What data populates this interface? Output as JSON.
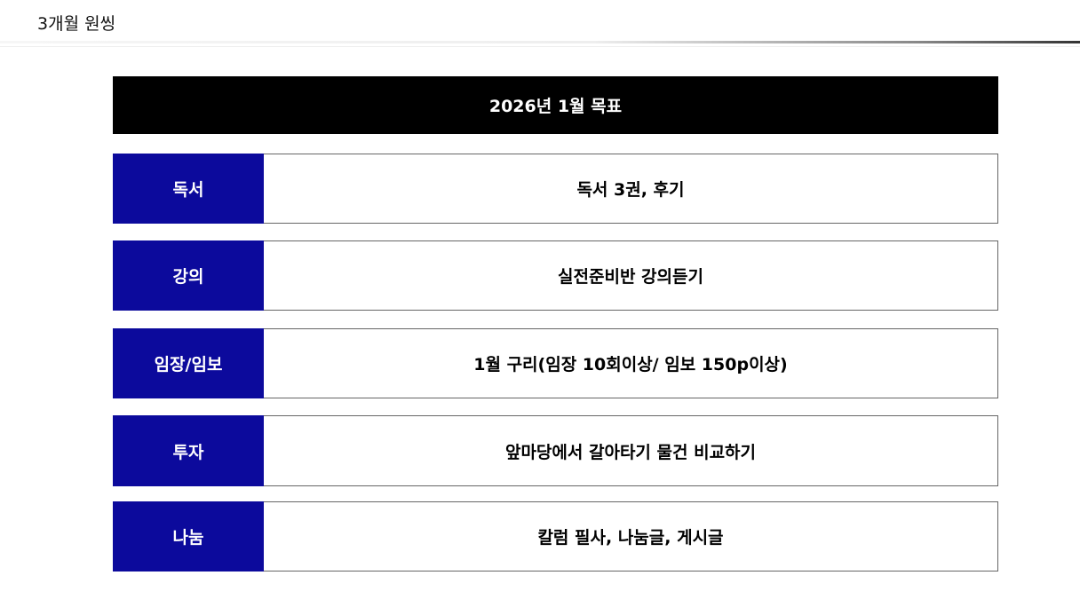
{
  "slide_title": "3개월 원씽",
  "header": "2026년 1월 목표",
  "rows": [
    {
      "label": "독서",
      "content": "독서 3권, 후기"
    },
    {
      "label": "강의",
      "content": "실전준비반 강의듣기"
    },
    {
      "label": "임장/임보",
      "content": "1월 구리(임장 10회이상/ 임보 150p이상)"
    },
    {
      "label": "투자",
      "content": "앞마당에서 갈아타기 물건 비교하기"
    },
    {
      "label": "나눔",
      "content": "칼럼 필사, 나눔글, 게시글"
    }
  ],
  "colors": {
    "label_bg": "#0c0a9c",
    "header_bg": "#000000"
  }
}
